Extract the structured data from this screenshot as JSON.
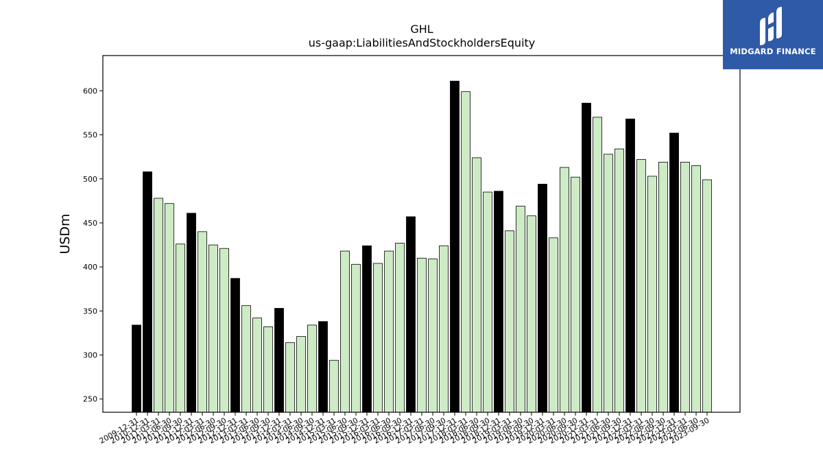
{
  "chart_data": {
    "type": "bar",
    "title": "GHL",
    "subtitle": "us-gaap:LiabilitiesAndStockholdersEquity",
    "xlabel": "",
    "ylabel": "USDm",
    "ylim": [
      235,
      640
    ],
    "yticks": [
      250,
      300,
      350,
      400,
      450,
      500,
      550,
      600
    ],
    "colors": {
      "q4": "#000000",
      "other": "#cdebc5",
      "edge": "#000000"
    },
    "categories": [
      "2009-12-31",
      "2010-12-31",
      "2011-03-31",
      "2011-06-30",
      "2011-09-30",
      "2011-12-31",
      "2012-03-31",
      "2012-06-30",
      "2012-09-30",
      "2012-12-31",
      "2013-03-31",
      "2013-06-30",
      "2013-09-30",
      "2013-12-31",
      "2014-03-31",
      "2014-06-30",
      "2014-09-30",
      "2014-12-31",
      "2015-03-31",
      "2015-06-30",
      "2015-09-30",
      "2015-12-31",
      "2016-03-31",
      "2016-06-30",
      "2016-09-30",
      "2016-12-31",
      "2017-03-31",
      "2017-06-30",
      "2017-09-30",
      "2017-12-31",
      "2018-03-31",
      "2018-06-30",
      "2018-09-30",
      "2018-12-31",
      "2019-03-31",
      "2019-06-30",
      "2019-09-30",
      "2019-12-31",
      "2020-03-31",
      "2020-06-30",
      "2020-09-30",
      "2020-12-31",
      "2021-03-31",
      "2021-06-30",
      "2021-09-30",
      "2021-12-31",
      "2022-03-31",
      "2022-06-30",
      "2022-09-30",
      "2022-12-31",
      "2023-03-31",
      "2023-06-30",
      "2023-09-30"
    ],
    "values": [
      334,
      508,
      478,
      472,
      426,
      461,
      440,
      425,
      421,
      387,
      356,
      342,
      332,
      353,
      314,
      321,
      334,
      338,
      294,
      418,
      403,
      424,
      404,
      418,
      427,
      457,
      410,
      409,
      424,
      611,
      599,
      524,
      485,
      486,
      441,
      469,
      458,
      494,
      433,
      513,
      502,
      586,
      570,
      528,
      534,
      568,
      522,
      503,
      519,
      552,
      519,
      515,
      499
    ],
    "highlight": [
      true,
      true,
      false,
      false,
      false,
      true,
      false,
      false,
      false,
      true,
      false,
      false,
      false,
      true,
      false,
      false,
      false,
      true,
      false,
      false,
      false,
      true,
      false,
      false,
      false,
      true,
      false,
      false,
      false,
      true,
      false,
      false,
      false,
      true,
      false,
      false,
      false,
      true,
      false,
      false,
      false,
      true,
      false,
      false,
      false,
      true,
      false,
      false,
      false,
      true,
      false,
      false,
      false
    ]
  },
  "logo": {
    "text": "MIDGARD FINANCE",
    "icon": "midgard-m-logo-icon",
    "background": "#2f5aa8"
  }
}
